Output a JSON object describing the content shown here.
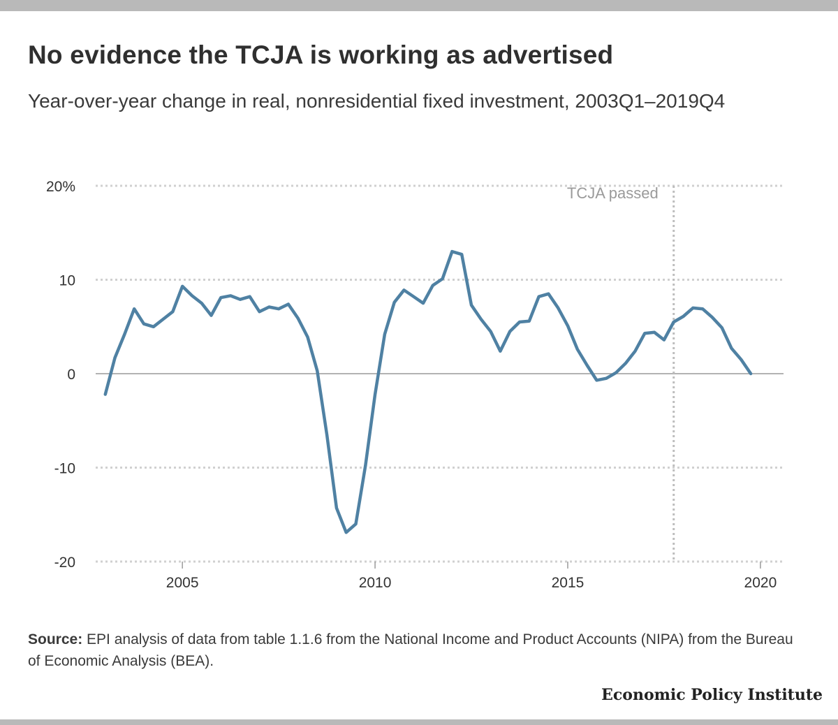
{
  "brand": "Economic Policy Institute",
  "source": {
    "label": "Source:",
    "text": " EPI analysis of data from table 1.1.6 from the National Income and Product Accounts (NIPA) from the Bureau of Economic Analysis (BEA)."
  },
  "colors": {
    "line": "#4f81a3",
    "grid": "#d0d0d0",
    "axis_text": "#333333",
    "annotation": "#9a9a9a"
  },
  "chart_data": {
    "type": "line",
    "title": "No evidence the TCJA is working as advertised",
    "subtitle": "Year-over-year change in real, nonresidential fixed investment, 2003Q1–2019Q4",
    "xlabel": "",
    "ylabel": "",
    "xlim": [
      2002.75,
      2020.6
    ],
    "ylim": [
      -20,
      20
    ],
    "x_ticks": [
      2005,
      2010,
      2015,
      2020
    ],
    "x_tick_labels": [
      "2005",
      "2010",
      "2015",
      "2020"
    ],
    "y_ticks": [
      20,
      10,
      0,
      -10,
      -20
    ],
    "y_tick_labels": [
      "20%",
      "10",
      "0",
      "-10",
      "-20"
    ],
    "grid": true,
    "annotation": {
      "label": "TCJA passed",
      "x": 2017.75
    },
    "series": [
      {
        "name": "Real nonresidential fixed investment, YoY change",
        "x": [
          2003.0,
          2003.25,
          2003.5,
          2003.75,
          2004.0,
          2004.25,
          2004.5,
          2004.75,
          2005.0,
          2005.25,
          2005.5,
          2005.75,
          2006.0,
          2006.25,
          2006.5,
          2006.75,
          2007.0,
          2007.25,
          2007.5,
          2007.75,
          2008.0,
          2008.25,
          2008.5,
          2008.75,
          2009.0,
          2009.25,
          2009.5,
          2009.75,
          2010.0,
          2010.25,
          2010.5,
          2010.75,
          2011.0,
          2011.25,
          2011.5,
          2011.75,
          2012.0,
          2012.25,
          2012.5,
          2012.75,
          2013.0,
          2013.25,
          2013.5,
          2013.75,
          2014.0,
          2014.25,
          2014.5,
          2014.75,
          2015.0,
          2015.25,
          2015.5,
          2015.75,
          2016.0,
          2016.25,
          2016.5,
          2016.75,
          2017.0,
          2017.25,
          2017.5,
          2017.75,
          2018.0,
          2018.25,
          2018.5,
          2018.75,
          2019.0,
          2019.25,
          2019.5,
          2019.75
        ],
        "values": [
          -2.2,
          1.7,
          4.2,
          6.9,
          5.3,
          5.0,
          5.8,
          6.6,
          9.3,
          8.3,
          7.5,
          6.2,
          8.1,
          8.3,
          7.9,
          8.2,
          6.6,
          7.1,
          6.9,
          7.4,
          5.9,
          3.9,
          0.3,
          -6.5,
          -14.3,
          -16.9,
          -16.0,
          -9.8,
          -2.2,
          4.2,
          7.6,
          8.9,
          8.2,
          7.5,
          9.4,
          10.1,
          13.0,
          12.7,
          7.3,
          5.8,
          4.5,
          2.4,
          4.5,
          5.5,
          5.6,
          8.2,
          8.5,
          7.0,
          5.1,
          2.6,
          0.9,
          -0.7,
          -0.5,
          0.1,
          1.1,
          2.4,
          4.3,
          4.4,
          3.6,
          5.5,
          6.1,
          7.0,
          6.9,
          6.0,
          4.9,
          2.7,
          1.5,
          0.0
        ]
      }
    ]
  }
}
